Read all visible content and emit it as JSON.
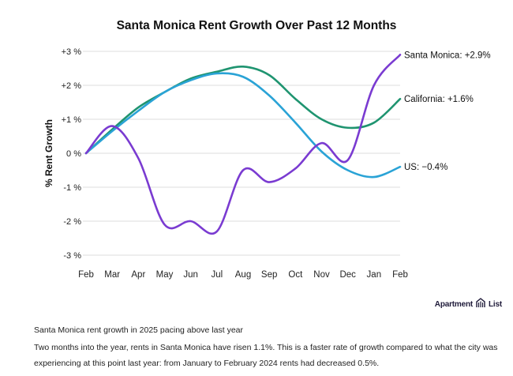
{
  "chart_data": {
    "type": "line",
    "title": "Santa Monica Rent Growth Over Past 12 Months",
    "xlabel": "",
    "ylabel": "% Rent Growth",
    "categories": [
      "Feb",
      "Mar",
      "Apr",
      "May",
      "Jun",
      "Jul",
      "Aug",
      "Sep",
      "Oct",
      "Nov",
      "Dec",
      "Jan",
      "Feb"
    ],
    "yticks": [
      3,
      2,
      1,
      0,
      -1,
      -2,
      -3
    ],
    "ytick_labels": [
      "+3 %",
      "+2 %",
      "+1 %",
      "0 %",
      "-1 %",
      "-2 %",
      "-3 %"
    ],
    "ylim": [
      -3,
      3
    ],
    "grid": true,
    "legend": "end-of-line labels (right)",
    "series": [
      {
        "name": "California",
        "end_label": "California: +1.6%",
        "color": "#1f9470",
        "values": [
          0,
          0.7,
          1.35,
          1.8,
          2.2,
          2.4,
          2.55,
          2.3,
          1.6,
          1.0,
          0.75,
          0.9,
          1.6
        ]
      },
      {
        "name": "US",
        "end_label": "US: −0.4%",
        "color": "#2aa3d6",
        "values": [
          0,
          0.65,
          1.25,
          1.8,
          2.15,
          2.35,
          2.25,
          1.7,
          0.9,
          0.05,
          -0.5,
          -0.7,
          -0.4
        ]
      },
      {
        "name": "Santa Monica",
        "end_label": "Santa Monica: +2.9%",
        "color": "#7a3bd1",
        "values": [
          0,
          0.8,
          -0.15,
          -2.1,
          -2.0,
          -2.3,
          -0.5,
          -0.85,
          -0.45,
          0.3,
          -0.2,
          2.0,
          2.9
        ]
      }
    ]
  },
  "brand": {
    "left": "Apartment",
    "right": "List",
    "icon": "building-icon"
  },
  "caption": {
    "title": "Santa Monica rent growth in 2025 pacing above last year",
    "body": "Two months into the year, rents in Santa Monica have risen 1.1%. This is a faster rate of growth compared to what the city was experiencing at this point last year: from January to February 2024 rents had decreased 0.5%."
  }
}
